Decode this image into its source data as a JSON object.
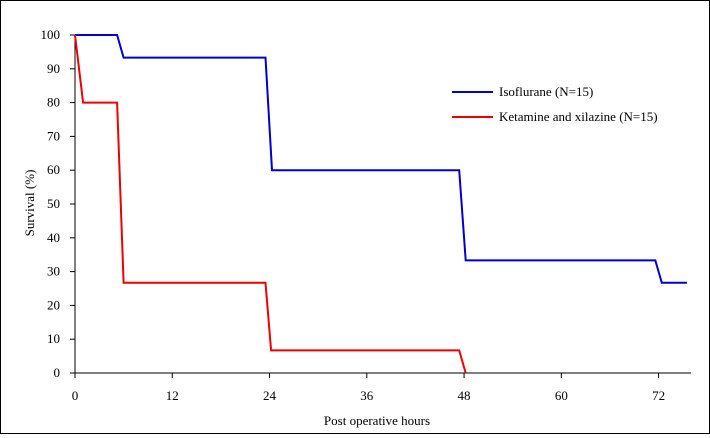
{
  "chart_data": {
    "type": "line",
    "step": true,
    "title": "",
    "xlabel": "Post operative hours",
    "ylabel": "Survival (%)",
    "xlim": [
      0,
      76
    ],
    "ylim": [
      0,
      100
    ],
    "x_ticks": [
      0,
      12,
      24,
      36,
      48,
      60,
      72
    ],
    "x_tick_labels": [
      "0",
      "12",
      "24",
      "36",
      "48",
      "60",
      "72"
    ],
    "y_ticks": [
      0,
      10,
      20,
      30,
      40,
      50,
      60,
      70,
      80,
      90,
      100
    ],
    "y_tick_labels": [
      "0",
      "10",
      "20",
      "30",
      "40",
      "50",
      "60",
      "70",
      "80",
      "90",
      "100"
    ],
    "grid": false,
    "legend_position": "upper-right",
    "series": [
      {
        "name": "Isoflurane (N=15)",
        "color": "#0000cc",
        "points": [
          [
            0,
            100
          ],
          [
            5.2,
            100
          ],
          [
            6,
            93.3
          ],
          [
            23.5,
            93.3
          ],
          [
            24.3,
            60
          ],
          [
            47.4,
            60
          ],
          [
            48.2,
            33.3
          ],
          [
            71.6,
            33.3
          ],
          [
            72.4,
            26.7
          ],
          [
            75.5,
            26.7
          ]
        ]
      },
      {
        "name": "Ketamine and xilazine (N=15)",
        "color": "#ee0000",
        "points": [
          [
            0,
            100
          ],
          [
            1,
            80
          ],
          [
            5.2,
            80
          ],
          [
            6,
            26.7
          ],
          [
            23.5,
            26.7
          ],
          [
            24.2,
            6.7
          ],
          [
            47.4,
            6.7
          ],
          [
            48.2,
            0
          ]
        ]
      }
    ]
  }
}
